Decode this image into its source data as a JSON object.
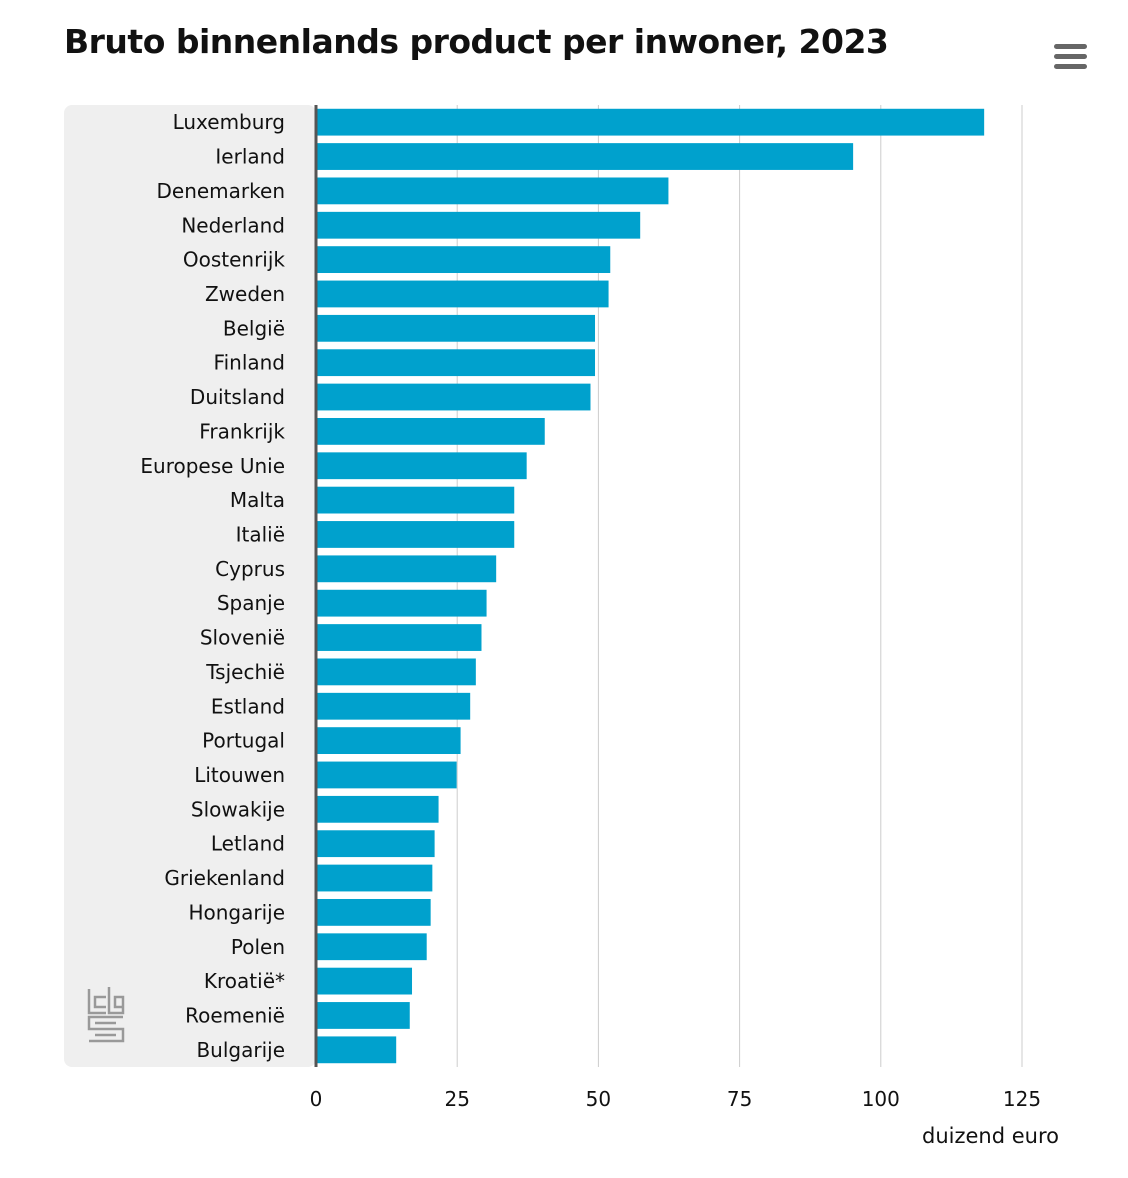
{
  "header": {
    "title": "Bruto binnenlands product per inwoner, 2023"
  },
  "menu": {
    "icon": "hamburger-menu-icon"
  },
  "logo": {
    "icon": "cbs-logo-icon"
  },
  "colors": {
    "bar": "#00A1CD",
    "panel": "#EFEFEF",
    "grid": "#CCCCCC",
    "axis": "#555555"
  },
  "chart_data": {
    "type": "bar",
    "orientation": "horizontal",
    "title": "Bruto binnenlands product per inwoner, 2023",
    "xlabel": "duizend euro",
    "ylabel": "",
    "xlim": [
      0,
      125
    ],
    "xticks": [
      0,
      25,
      50,
      75,
      100,
      125
    ],
    "grid": true,
    "categories": [
      "Luxemburg",
      "Ierland",
      "Denemarken",
      "Nederland",
      "Oostenrijk",
      "Zweden",
      "België",
      "Finland",
      "Duitsland",
      "Frankrijk",
      "Europese Unie",
      "Malta",
      "Italië",
      "Cyprus",
      "Spanje",
      "Slovenië",
      "Tsjechië",
      "Estland",
      "Portugal",
      "Litouwen",
      "Slowakije",
      "Letland",
      "Griekenland",
      "Hongarije",
      "Polen",
      "Kroatië*",
      "Roemenië",
      "Bulgarije"
    ],
    "values": [
      118.3,
      95.1,
      62.4,
      57.4,
      52.1,
      51.8,
      49.4,
      49.4,
      48.6,
      40.5,
      37.3,
      35.1,
      35.1,
      31.9,
      30.2,
      29.3,
      28.3,
      27.3,
      25.6,
      24.9,
      21.7,
      21.0,
      20.6,
      20.3,
      19.6,
      17.0,
      16.6,
      14.2
    ]
  }
}
